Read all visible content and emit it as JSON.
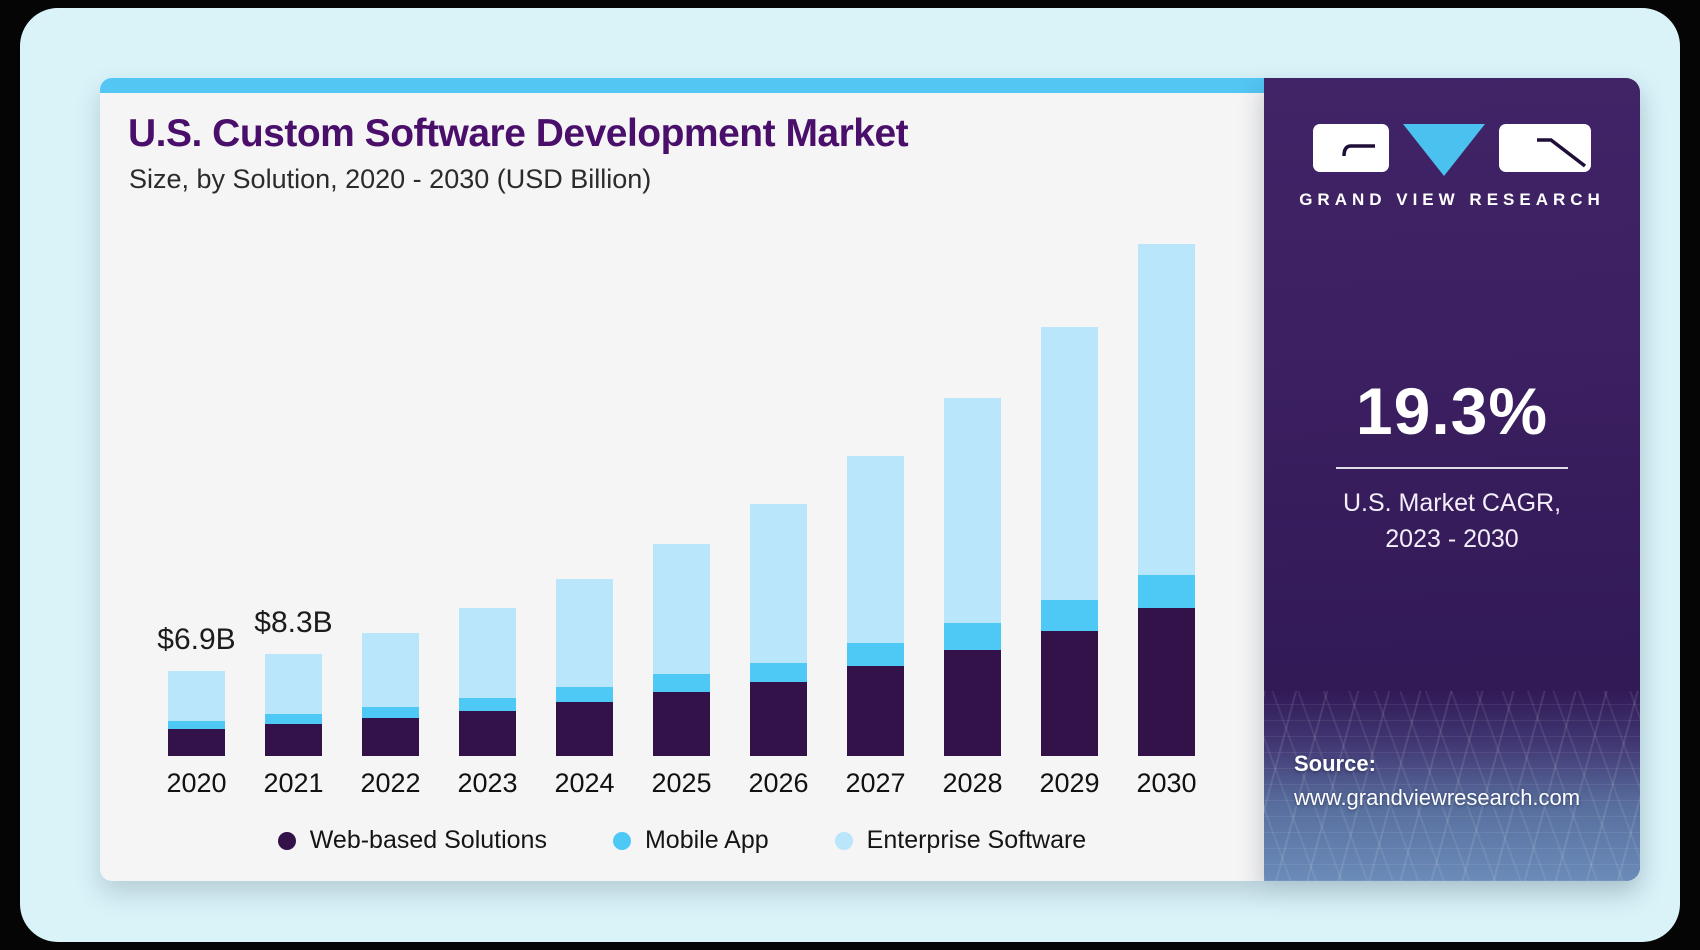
{
  "panel": {
    "title": "U.S. Custom Software Development Market",
    "subtitle": "Size, by Solution, 2020 - 2030 (USD Billion)"
  },
  "sidebar": {
    "brand": "GRAND VIEW RESEARCH",
    "cagr_value": "19.3%",
    "cagr_label_line1": "U.S. Market CAGR,",
    "cagr_label_line2": "2023 - 2030",
    "source_label": "Source:",
    "source_url": "www.grandviewresearch.com"
  },
  "colors": {
    "accent_strip_blue": "#53c6f3",
    "title_purple": "#4a0e6b",
    "sidebar_purple": "#3b1f60",
    "logo_triangle_blue": "#4ac1ef"
  },
  "chart_data": {
    "type": "bar",
    "stacked": true,
    "title": "U.S. Custom Software Development Market Size, by Solution, 2020 - 2030 (USD Billion)",
    "unit": "USD Billion",
    "categories": [
      "2020",
      "2021",
      "2022",
      "2023",
      "2024",
      "2025",
      "2026",
      "2027",
      "2028",
      "2029",
      "2030"
    ],
    "series": [
      {
        "name": "Web-based Solutions",
        "color": "#331149",
        "values": [
          2.2,
          2.6,
          3.1,
          3.7,
          4.4,
          5.2,
          6.0,
          7.3,
          8.6,
          10.2,
          12.0
        ]
      },
      {
        "name": "Mobile App",
        "color": "#4ec9f5",
        "values": [
          0.65,
          0.8,
          0.9,
          1.0,
          1.2,
          1.45,
          1.6,
          1.9,
          2.2,
          2.5,
          2.7
        ]
      },
      {
        "name": "Enterprise Software",
        "color": "#b9e6fa",
        "values": [
          4.05,
          4.9,
          6.0,
          7.3,
          8.8,
          10.55,
          12.9,
          15.2,
          18.3,
          22.2,
          26.9
        ]
      }
    ],
    "totals": [
      6.9,
      8.3,
      10.0,
      12.0,
      14.4,
      17.2,
      20.5,
      24.4,
      29.1,
      34.9,
      41.6
    ],
    "value_labels": [
      "$6.9B",
      "$8.3B",
      null,
      null,
      null,
      null,
      null,
      null,
      null,
      null,
      null
    ],
    "ylim": [
      0,
      45
    ],
    "grid": false,
    "axis_lines": false,
    "legend_position": "bottom"
  }
}
